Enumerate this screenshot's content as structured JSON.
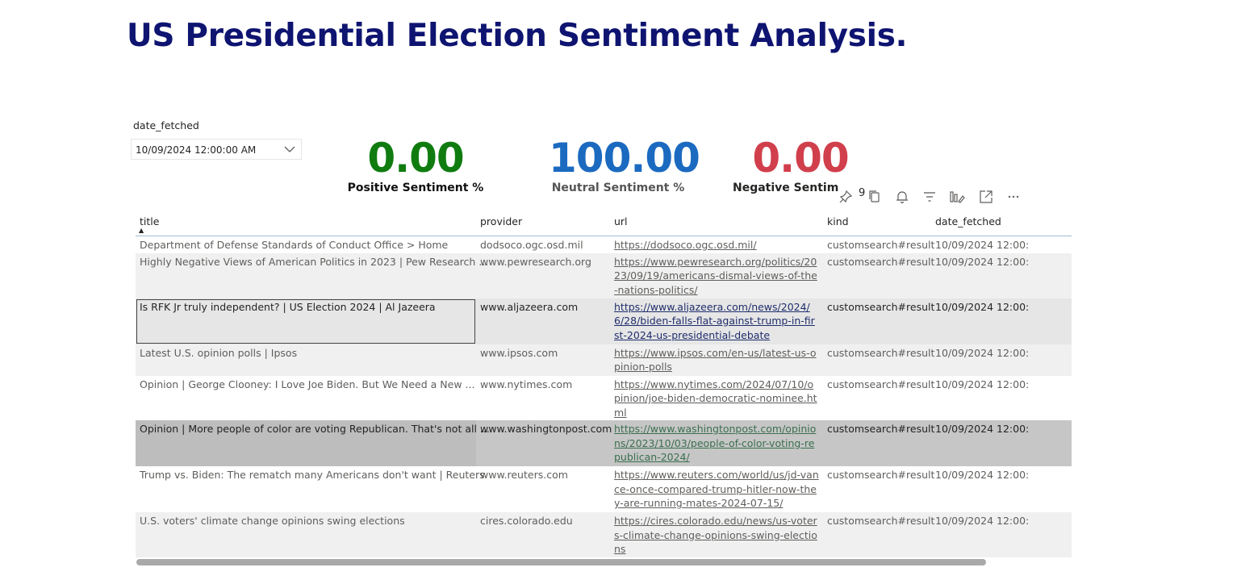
{
  "page": {
    "title": "US Presidential Election Sentiment Analysis."
  },
  "slicer": {
    "label": "date_fetched",
    "value": "10/09/2024 12:00:00 AM"
  },
  "cards": [
    {
      "value": "0.00",
      "label": "Positive Sentiment %",
      "color": "#107c10"
    },
    {
      "value": "100.00",
      "label": "Neutral Sentiment %",
      "color": "#1b6ac0"
    },
    {
      "value": "0.00",
      "label": "Negative Sentim",
      "color": "#d13f4c"
    }
  ],
  "label_colors": {
    "positive": "#111111",
    "neutral": "#555555",
    "negative": "#252423"
  },
  "toolbar": {
    "icons": [
      "pin-icon",
      "copy-icon",
      "bell-icon",
      "filter-icon",
      "format-icon",
      "focus-mode-icon",
      "more-options-icon"
    ],
    "partial_text": "9"
  },
  "table": {
    "columns": [
      "title",
      "provider",
      "url",
      "kind",
      "date_fetched"
    ],
    "sorted_column": "title",
    "rows": [
      {
        "title": "Department of Defense Standards of Conduct Office > Home",
        "provider": "dodsoco.ogc.osd.mil",
        "url": "https://dodsoco.ogc.osd.mil/",
        "kind": "customsearch#result",
        "date_fetched": "10/09/2024 12:00:"
      },
      {
        "title": "Highly Negative Views of American Politics in 2023 | Pew Research ...",
        "provider": "www.pewresearch.org",
        "url": "https://www.pewresearch.org/politics/2023/09/19/americans-dismal-views-of-the-nations-politics/",
        "kind": "customsearch#result",
        "date_fetched": "10/09/2024 12:00:"
      },
      {
        "title": "Is RFK Jr truly independent? | US Election 2024 | Al Jazeera",
        "provider": "www.aljazeera.com",
        "url": "https://www.aljazeera.com/news/2024/6/28/biden-falls-flat-against-trump-in-first-2024-us-presidential-debate",
        "kind": "customsearch#result",
        "date_fetched": "10/09/2024 12:00:"
      },
      {
        "title": "Latest U.S. opinion polls | Ipsos",
        "provider": "www.ipsos.com",
        "url": "https://www.ipsos.com/en-us/latest-us-opinion-polls",
        "kind": "customsearch#result",
        "date_fetched": "10/09/2024 12:00:"
      },
      {
        "title": "Opinion | George Clooney: I Love Joe Biden. But We Need a New ...",
        "provider": "www.nytimes.com",
        "url": "https://www.nytimes.com/2024/07/10/opinion/joe-biden-democratic-nominee.html",
        "kind": "customsearch#result",
        "date_fetched": "10/09/2024 12:00:"
      },
      {
        "title": "Opinion | More people of color are voting Republican. That's not all ...",
        "provider": "www.washingtonpost.com",
        "url": "https://www.washingtonpost.com/opinions/2023/10/03/people-of-color-voting-republican-2024/",
        "kind": "customsearch#result",
        "date_fetched": "10/09/2024 12:00:"
      },
      {
        "title": "Trump vs. Biden: The rematch many Americans don't want | Reuters",
        "provider": "www.reuters.com",
        "url": "https://www.reuters.com/world/us/jd-vance-once-compared-trump-hitler-now-they-are-running-mates-2024-07-15/",
        "kind": "customsearch#result",
        "date_fetched": "10/09/2024 12:00:"
      },
      {
        "title": "U.S. voters' climate change opinions swing elections",
        "provider": "cires.colorado.edu",
        "url": "https://cires.colorado.edu/news/us-voters-climate-change-opinions-swing-elections",
        "kind": "customsearch#result",
        "date_fetched": "10/09/2024 12:00:"
      }
    ]
  }
}
